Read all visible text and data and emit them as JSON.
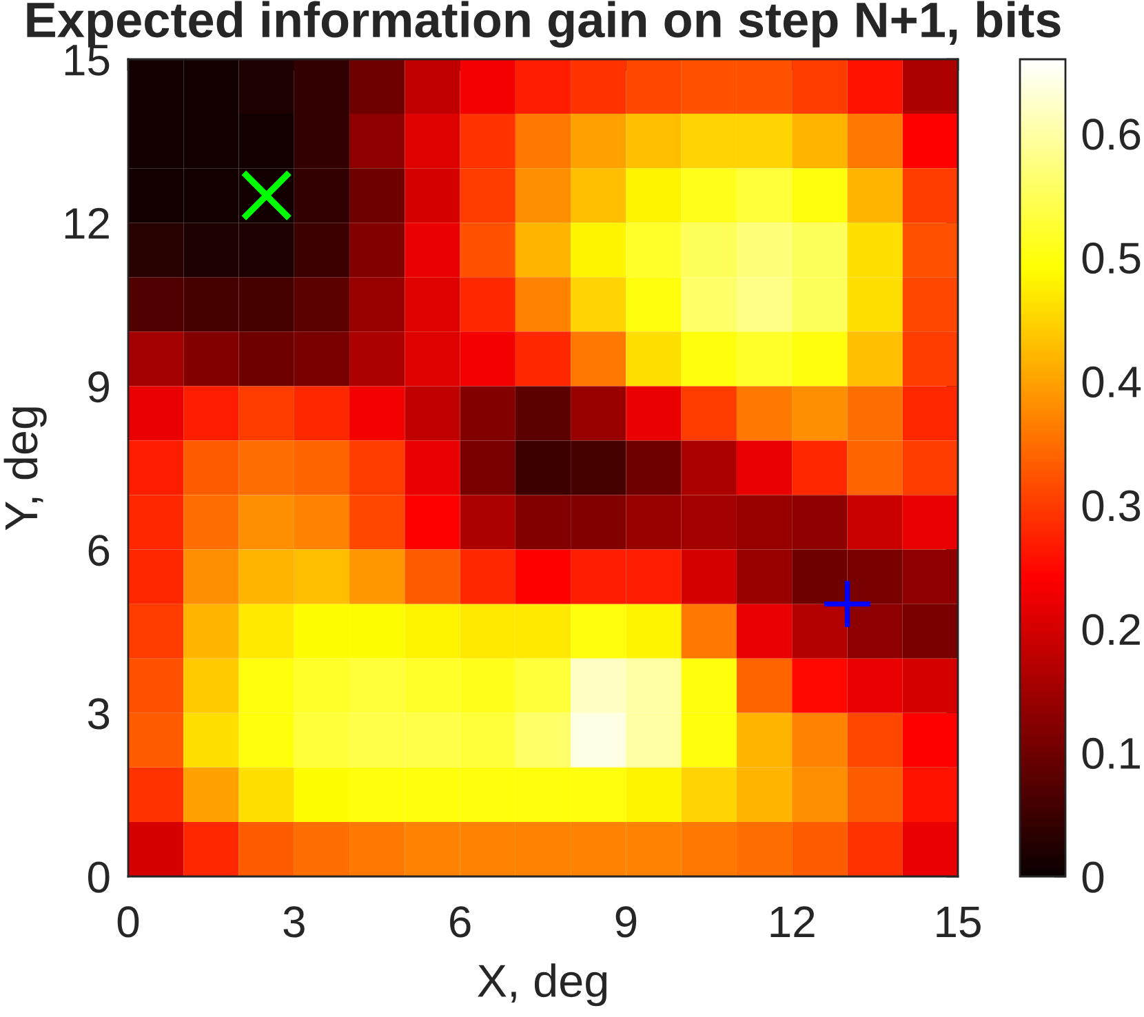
{
  "chart_data": {
    "type": "heatmap",
    "title": "Expected information gain on step N+1, bits",
    "xlabel": "X, deg",
    "ylabel": "Y, deg",
    "cells": [
      [
        0.01,
        0.01,
        0.02,
        0.04,
        0.1,
        0.18,
        0.23,
        0.27,
        0.29,
        0.31,
        0.32,
        0.32,
        0.3,
        0.26,
        0.16
      ],
      [
        0.01,
        0.01,
        0.01,
        0.04,
        0.13,
        0.21,
        0.29,
        0.36,
        0.4,
        0.43,
        0.45,
        0.45,
        0.42,
        0.36,
        0.24
      ],
      [
        0.01,
        0.01,
        0.01,
        0.04,
        0.1,
        0.2,
        0.3,
        0.38,
        0.43,
        0.48,
        0.51,
        0.53,
        0.5,
        0.42,
        0.3
      ],
      [
        0.03,
        0.02,
        0.02,
        0.05,
        0.12,
        0.22,
        0.32,
        0.42,
        0.48,
        0.52,
        0.55,
        0.57,
        0.55,
        0.46,
        0.32
      ],
      [
        0.07,
        0.06,
        0.06,
        0.08,
        0.14,
        0.21,
        0.28,
        0.37,
        0.45,
        0.5,
        0.56,
        0.58,
        0.55,
        0.46,
        0.31
      ],
      [
        0.15,
        0.12,
        0.1,
        0.11,
        0.16,
        0.21,
        0.23,
        0.28,
        0.36,
        0.46,
        0.5,
        0.52,
        0.5,
        0.43,
        0.3
      ],
      [
        0.22,
        0.27,
        0.3,
        0.28,
        0.23,
        0.18,
        0.12,
        0.08,
        0.14,
        0.22,
        0.3,
        0.36,
        0.38,
        0.35,
        0.28
      ],
      [
        0.27,
        0.33,
        0.35,
        0.34,
        0.3,
        0.22,
        0.11,
        0.05,
        0.06,
        0.1,
        0.16,
        0.22,
        0.28,
        0.34,
        0.3
      ],
      [
        0.28,
        0.35,
        0.38,
        0.37,
        0.31,
        0.24,
        0.16,
        0.12,
        0.12,
        0.14,
        0.15,
        0.14,
        0.13,
        0.19,
        0.22
      ],
      [
        0.28,
        0.38,
        0.42,
        0.43,
        0.39,
        0.33,
        0.28,
        0.24,
        0.27,
        0.27,
        0.2,
        0.14,
        0.1,
        0.11,
        0.13
      ],
      [
        0.3,
        0.42,
        0.47,
        0.49,
        0.49,
        0.48,
        0.47,
        0.47,
        0.5,
        0.48,
        0.36,
        0.22,
        0.17,
        0.13,
        0.11
      ],
      [
        0.32,
        0.44,
        0.5,
        0.52,
        0.53,
        0.52,
        0.51,
        0.53,
        0.62,
        0.6,
        0.5,
        0.34,
        0.25,
        0.22,
        0.2
      ],
      [
        0.33,
        0.46,
        0.5,
        0.53,
        0.54,
        0.54,
        0.53,
        0.56,
        0.64,
        0.6,
        0.5,
        0.42,
        0.37,
        0.31,
        0.24
      ],
      [
        0.29,
        0.4,
        0.46,
        0.49,
        0.5,
        0.5,
        0.5,
        0.5,
        0.5,
        0.48,
        0.45,
        0.42,
        0.38,
        0.33,
        0.26
      ],
      [
        0.2,
        0.28,
        0.33,
        0.35,
        0.36,
        0.37,
        0.37,
        0.37,
        0.37,
        0.37,
        0.36,
        0.35,
        0.33,
        0.29,
        0.22
      ]
    ],
    "clim": [
      0,
      0.66
    ],
    "cticks": [
      0,
      0.1,
      0.2,
      0.3,
      0.4,
      0.5,
      0.6
    ],
    "xlim": [
      0,
      15
    ],
    "ylim": [
      0,
      15
    ],
    "xticks": [
      0,
      3,
      6,
      9,
      12,
      15
    ],
    "yticks": [
      0,
      3,
      6,
      9,
      12,
      15
    ],
    "series": [
      {
        "type": "scatter",
        "color": "#00ff00",
        "marker": "x",
        "x": [
          2.5
        ],
        "values": [
          12.5
        ]
      },
      {
        "type": "scatter",
        "color": "#0000ff",
        "marker": "cross",
        "x": [
          13
        ],
        "values": [
          5
        ]
      }
    ]
  }
}
